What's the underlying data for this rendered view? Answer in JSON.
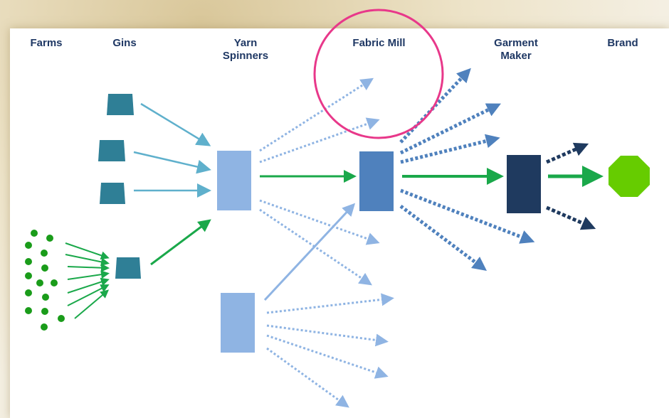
{
  "columns": [
    "Farms",
    "Gins",
    "Yarn Spinners",
    "Fabric Mill",
    "Garment Maker",
    "Brand"
  ]
}
